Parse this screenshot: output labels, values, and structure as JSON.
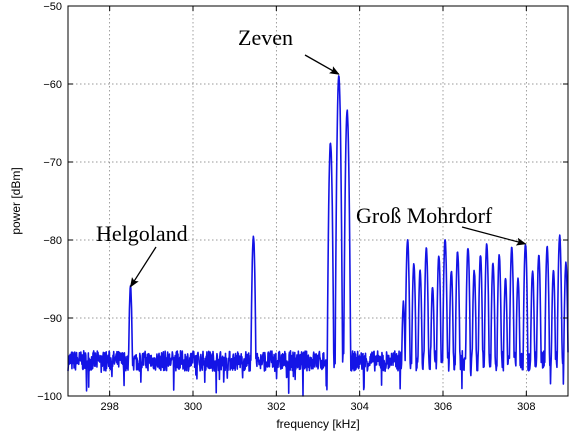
{
  "chart_data": {
    "type": "line",
    "title": "",
    "xlabel": "frequency [kHz]",
    "ylabel": "power [dBm]",
    "xlim": [
      297,
      309
    ],
    "ylim": [
      -100,
      -50
    ],
    "xticks": [
      298,
      300,
      302,
      304,
      306,
      308
    ],
    "yticks": [
      -100,
      -90,
      -80,
      -70,
      -60,
      -50
    ],
    "xtick_labels": [
      "298",
      "300",
      "302",
      "304",
      "306",
      "308"
    ],
    "ytick_labels": [
      "−100",
      "−90",
      "−80",
      "−70",
      "−60",
      "−50"
    ],
    "grid": true,
    "series_color": "#1414e6",
    "noise_floor": -95.5,
    "peaks": [
      {
        "x": 298.5,
        "y": -86
      },
      {
        "x": 301.45,
        "y": -79.5
      },
      {
        "x": 303.3,
        "y": -67.5
      },
      {
        "x": 303.5,
        "y": -59
      },
      {
        "x": 303.7,
        "y": -63.5
      },
      {
        "x": 305.05,
        "y": -88
      },
      {
        "x": 305.15,
        "y": -80
      },
      {
        "x": 305.3,
        "y": -83
      },
      {
        "x": 305.45,
        "y": -84
      },
      {
        "x": 305.6,
        "y": -81
      },
      {
        "x": 305.75,
        "y": -86
      },
      {
        "x": 305.9,
        "y": -82
      },
      {
        "x": 306.05,
        "y": -80
      },
      {
        "x": 306.2,
        "y": -84
      },
      {
        "x": 306.35,
        "y": -81.5
      },
      {
        "x": 306.6,
        "y": -81
      },
      {
        "x": 306.75,
        "y": -84
      },
      {
        "x": 306.9,
        "y": -82
      },
      {
        "x": 307.05,
        "y": -80.5
      },
      {
        "x": 307.2,
        "y": -83
      },
      {
        "x": 307.35,
        "y": -82
      },
      {
        "x": 307.5,
        "y": -85
      },
      {
        "x": 307.65,
        "y": -81
      },
      {
        "x": 307.8,
        "y": -85
      },
      {
        "x": 307.98,
        "y": -80.5
      },
      {
        "x": 308.15,
        "y": -84
      },
      {
        "x": 308.3,
        "y": -82
      },
      {
        "x": 308.5,
        "y": -81
      },
      {
        "x": 308.65,
        "y": -84
      },
      {
        "x": 308.8,
        "y": -79.5
      },
      {
        "x": 308.95,
        "y": -83
      }
    ],
    "annotations": [
      {
        "text": "Zeven",
        "x": 303.5,
        "y": -59
      },
      {
        "text": "Helgoland",
        "x": 298.5,
        "y": -86
      },
      {
        "text": "Groß  Mohrdorf",
        "x": 307.98,
        "y": -80.5
      }
    ]
  }
}
